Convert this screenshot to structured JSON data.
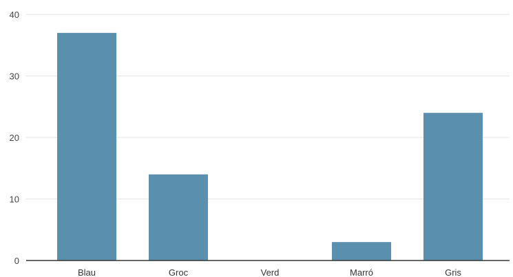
{
  "chart_data": {
    "type": "bar",
    "title": "",
    "xlabel": "",
    "ylabel": "",
    "categories": [
      "Blau",
      "Groc",
      "Verd",
      "Marró",
      "Gris"
    ],
    "values": [
      37,
      14,
      0,
      3,
      24
    ],
    "ylim": [
      0,
      40
    ],
    "yticks": [
      0,
      10,
      20,
      30,
      40
    ],
    "grid": true,
    "legend": "none",
    "bar_color": "#5b8fae"
  }
}
